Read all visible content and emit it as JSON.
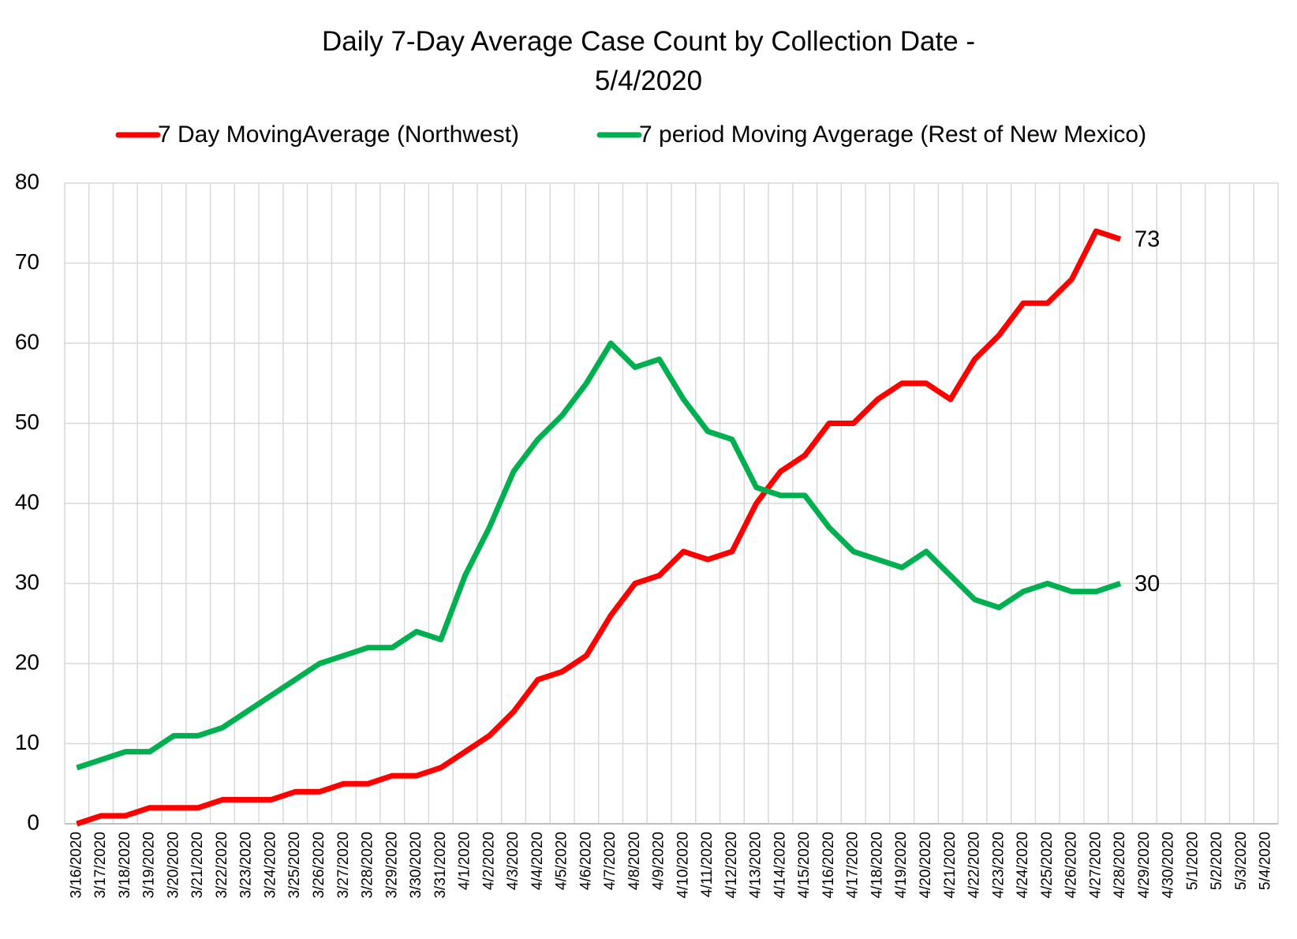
{
  "chart_data": {
    "type": "line",
    "title": "Daily 7-Day Average Case Count by Collection Date - 5/4/2020",
    "categories": [
      "3/16/2020",
      "3/17/2020",
      "3/18/2020",
      "3/19/2020",
      "3/20/2020",
      "3/21/2020",
      "3/22/2020",
      "3/23/2020",
      "3/24/2020",
      "3/25/2020",
      "3/26/2020",
      "3/27/2020",
      "3/28/2020",
      "3/29/2020",
      "3/30/2020",
      "3/31/2020",
      "4/1/2020",
      "4/2/2020",
      "4/3/2020",
      "4/4/2020",
      "4/5/2020",
      "4/6/2020",
      "4/7/2020",
      "4/8/2020",
      "4/9/2020",
      "4/10/2020",
      "4/11/2020",
      "4/12/2020",
      "4/13/2020",
      "4/14/2020",
      "4/15/2020",
      "4/16/2020",
      "4/17/2020",
      "4/18/2020",
      "4/19/2020",
      "4/20/2020",
      "4/21/2020",
      "4/22/2020",
      "4/23/2020",
      "4/24/2020",
      "4/25/2020",
      "4/26/2020",
      "4/27/2020",
      "4/28/2020",
      "4/29/2020",
      "4/30/2020",
      "5/1/2020",
      "5/2/2020",
      "5/3/2020",
      "5/4/2020"
    ],
    "series": [
      {
        "name": "7 Day MovingAverage (Northwest)",
        "color": "#ff0000",
        "values": [
          0,
          1,
          1,
          2,
          2,
          2,
          3,
          3,
          3,
          4,
          4,
          5,
          5,
          6,
          6,
          7,
          9,
          11,
          14,
          18,
          19,
          21,
          26,
          30,
          31,
          34,
          33,
          34,
          40,
          44,
          46,
          50,
          50,
          53,
          55,
          55,
          53,
          58,
          61,
          65,
          65,
          68,
          74,
          73,
          null,
          null,
          null,
          null,
          null,
          null
        ]
      },
      {
        "name": "7 period Moving Avgerage (Rest of New Mexico)",
        "color": "#00b050",
        "values": [
          7,
          8,
          9,
          9,
          11,
          11,
          12,
          14,
          16,
          18,
          20,
          21,
          22,
          22,
          24,
          23,
          31,
          37,
          44,
          48,
          51,
          55,
          60,
          57,
          58,
          53,
          49,
          48,
          42,
          41,
          41,
          37,
          34,
          33,
          32,
          34,
          31,
          28,
          27,
          29,
          30,
          29,
          29,
          30,
          null,
          null,
          null,
          null,
          null,
          null
        ]
      }
    ],
    "ylim": [
      0,
      80
    ],
    "yticks": [
      0,
      10,
      20,
      30,
      40,
      50,
      60,
      70,
      80
    ],
    "grid": true,
    "legend": "top"
  }
}
